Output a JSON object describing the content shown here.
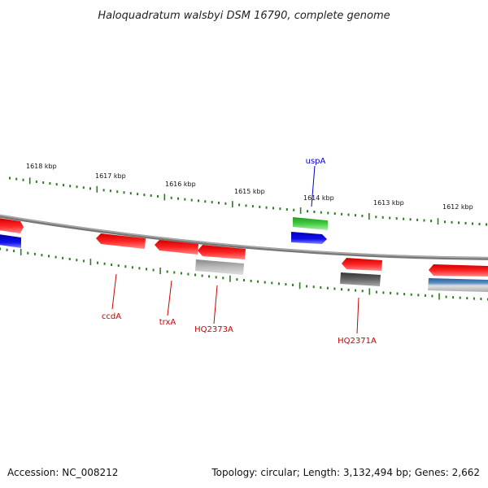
{
  "title": "Haloquadratum walsbyi DSM 16790, complete genome",
  "scale_labels": [
    "1618 kbp",
    "1617 kbp",
    "1616 kbp",
    "1615 kbp",
    "1614 kbp",
    "1613 kbp",
    "1612 kbp"
  ],
  "genes": [
    {
      "name": "uspA",
      "color": "#0000cc"
    },
    {
      "name": "ccdA",
      "color": "#cc0000"
    },
    {
      "name": "trxA",
      "color": "#cc0000"
    },
    {
      "name": "HQ2373A",
      "color": "#cc0000"
    },
    {
      "name": "HQ2371A",
      "color": "#cc0000"
    }
  ],
  "colors": {
    "backbone": "#888888",
    "tick": "#2e7d1f",
    "forward_cds": "#ee1111",
    "reverse_cds": "#ee1111",
    "blue_feature": "#1111dd",
    "green_feature": "#33bb33",
    "gray_feature": "#b0b0b0",
    "dark_feature": "#555555",
    "steel_feature": "#4a80b5"
  },
  "footer": {
    "accession": "Accession: NC_008212",
    "info": "Topology: circular; Length: 3,132,494 bp; Genes: 2,662"
  }
}
